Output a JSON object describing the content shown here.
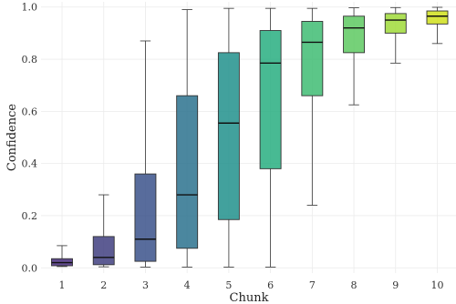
{
  "chart_data": {
    "type": "box",
    "xlabel": "Chunk",
    "ylabel": "Confidence",
    "ylim": [
      -0.02,
      1.02
    ],
    "yticks": [
      "0.0",
      "0.2",
      "0.4",
      "0.6",
      "0.8",
      "1.0"
    ],
    "grid": true,
    "categories": [
      "1",
      "2",
      "3",
      "4",
      "5",
      "6",
      "7",
      "8",
      "9",
      "10"
    ],
    "boxes": [
      {
        "min": 0.005,
        "q1": 0.008,
        "median": 0.02,
        "q3": 0.035,
        "max": 0.085,
        "color": "#472d7b"
      },
      {
        "min": 0.004,
        "q1": 0.012,
        "median": 0.04,
        "q3": 0.12,
        "max": 0.28,
        "color": "#413f80"
      },
      {
        "min": 0.003,
        "q1": 0.025,
        "median": 0.11,
        "q3": 0.36,
        "max": 0.87,
        "color": "#3b528b"
      },
      {
        "min": 0.003,
        "q1": 0.075,
        "median": 0.28,
        "q3": 0.66,
        "max": 0.99,
        "color": "#2c728e"
      },
      {
        "min": 0.003,
        "q1": 0.185,
        "median": 0.555,
        "q3": 0.825,
        "max": 0.995,
        "color": "#21918c"
      },
      {
        "min": 0.003,
        "q1": 0.38,
        "median": 0.785,
        "q3": 0.91,
        "max": 0.995,
        "color": "#28ae80"
      },
      {
        "min": 0.24,
        "q1": 0.66,
        "median": 0.865,
        "q3": 0.945,
        "max": 0.995,
        "color": "#3fbc73"
      },
      {
        "min": 0.625,
        "q1": 0.825,
        "median": 0.92,
        "q3": 0.965,
        "max": 0.997,
        "color": "#5ec962"
      },
      {
        "min": 0.785,
        "q1": 0.9,
        "median": 0.95,
        "q3": 0.975,
        "max": 0.998,
        "color": "#a0da39"
      },
      {
        "min": 0.86,
        "q1": 0.935,
        "median": 0.965,
        "q3": 0.985,
        "max": 0.999,
        "color": "#d0e11c"
      }
    ]
  }
}
